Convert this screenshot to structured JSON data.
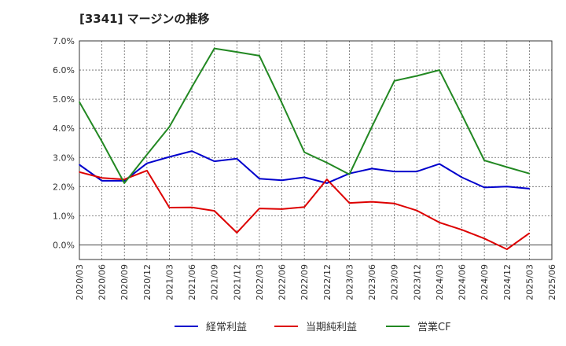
{
  "chart_data": {
    "type": "line",
    "title": "[3341]  マージンの推移",
    "xlabel": "",
    "ylabel": "",
    "x": [
      "2020/03",
      "2020/06",
      "2020/09",
      "2020/12",
      "2021/03",
      "2021/06",
      "2021/09",
      "2021/12",
      "2022/03",
      "2022/06",
      "2022/09",
      "2022/12",
      "2023/03",
      "2023/06",
      "2023/09",
      "2023/12",
      "2024/03",
      "2024/06",
      "2024/09",
      "2024/12",
      "2025/03",
      "2025/06"
    ],
    "y_ticks": [
      "7.0%",
      "6.0%",
      "5.0%",
      "4.0%",
      "3.0%",
      "2.0%",
      "1.0%",
      "0.0%"
    ],
    "ylim": [
      -0.5,
      7.0
    ],
    "grid": true,
    "legend_position": "bottom",
    "series": [
      {
        "name": "経常利益",
        "color": "#0000cc",
        "values": [
          2.75,
          2.2,
          2.2,
          2.8,
          3.02,
          3.22,
          2.87,
          2.96,
          2.27,
          2.22,
          2.32,
          2.12,
          2.45,
          2.62,
          2.52,
          2.52,
          2.78,
          2.32,
          1.97,
          2.0,
          1.93,
          null
        ]
      },
      {
        "name": "当期純利益",
        "color": "#dd0000",
        "values": [
          2.5,
          2.3,
          2.25,
          2.55,
          1.28,
          1.29,
          1.17,
          0.42,
          1.25,
          1.23,
          1.3,
          2.25,
          1.44,
          1.48,
          1.42,
          1.18,
          0.77,
          0.52,
          0.22,
          -0.15,
          0.4,
          null
        ]
      },
      {
        "name": "営業CF",
        "color": "#228822",
        "values": [
          4.9,
          3.55,
          2.12,
          3.1,
          4.05,
          5.42,
          6.74,
          6.62,
          6.49,
          4.87,
          3.18,
          2.82,
          2.42,
          4.05,
          5.63,
          5.8,
          6.0,
          4.47,
          2.9,
          2.67,
          2.45,
          null
        ]
      }
    ]
  }
}
